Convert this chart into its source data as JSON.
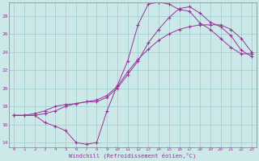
{
  "bg_color": "#cce8e8",
  "line_color": "#993399",
  "grid_color": "#99cccc",
  "xlim": [
    -0.5,
    23.5
  ],
  "ylim": [
    13.5,
    29.5
  ],
  "xticks": [
    0,
    1,
    2,
    3,
    4,
    5,
    6,
    7,
    8,
    9,
    10,
    11,
    12,
    13,
    14,
    15,
    16,
    17,
    18,
    19,
    20,
    21,
    22,
    23
  ],
  "yticks": [
    14,
    16,
    18,
    20,
    22,
    24,
    26,
    28
  ],
  "xlabel": "Windchill (Refroidissement éolien,°C)",
  "curve1_x": [
    0,
    1,
    2,
    3,
    4,
    5,
    6,
    7,
    8,
    9,
    10,
    11,
    12,
    13,
    14,
    15,
    16,
    17,
    18,
    19,
    20,
    21,
    22,
    23
  ],
  "curve1_y": [
    17.0,
    17.0,
    17.0,
    16.2,
    15.8,
    15.3,
    14.0,
    13.8,
    14.0,
    17.5,
    20.3,
    23.0,
    27.0,
    29.3,
    29.5,
    29.3,
    28.7,
    28.5,
    27.2,
    26.5,
    25.5,
    24.5,
    23.8,
    23.8
  ],
  "curve2_x": [
    0,
    1,
    2,
    3,
    4,
    5,
    6,
    7,
    8,
    9,
    10,
    11,
    12,
    13,
    14,
    15,
    16,
    17,
    18,
    19,
    20,
    21,
    22,
    23
  ],
  "curve2_y": [
    17.0,
    17.0,
    17.2,
    17.5,
    18.0,
    18.2,
    18.3,
    18.5,
    18.5,
    19.0,
    20.0,
    21.5,
    23.0,
    25.0,
    26.5,
    27.8,
    28.8,
    29.0,
    28.3,
    27.3,
    26.8,
    25.8,
    24.2,
    23.5
  ],
  "curve3_x": [
    0,
    1,
    2,
    3,
    4,
    5,
    6,
    7,
    8,
    9,
    10,
    11,
    12,
    13,
    14,
    15,
    16,
    17,
    18,
    19,
    20,
    21,
    22,
    23
  ],
  "curve3_y": [
    17.0,
    17.0,
    17.0,
    17.2,
    17.5,
    18.0,
    18.3,
    18.5,
    18.7,
    19.2,
    20.2,
    21.8,
    23.2,
    24.3,
    25.3,
    26.0,
    26.5,
    26.8,
    27.0,
    27.0,
    27.0,
    26.5,
    25.5,
    24.0
  ]
}
